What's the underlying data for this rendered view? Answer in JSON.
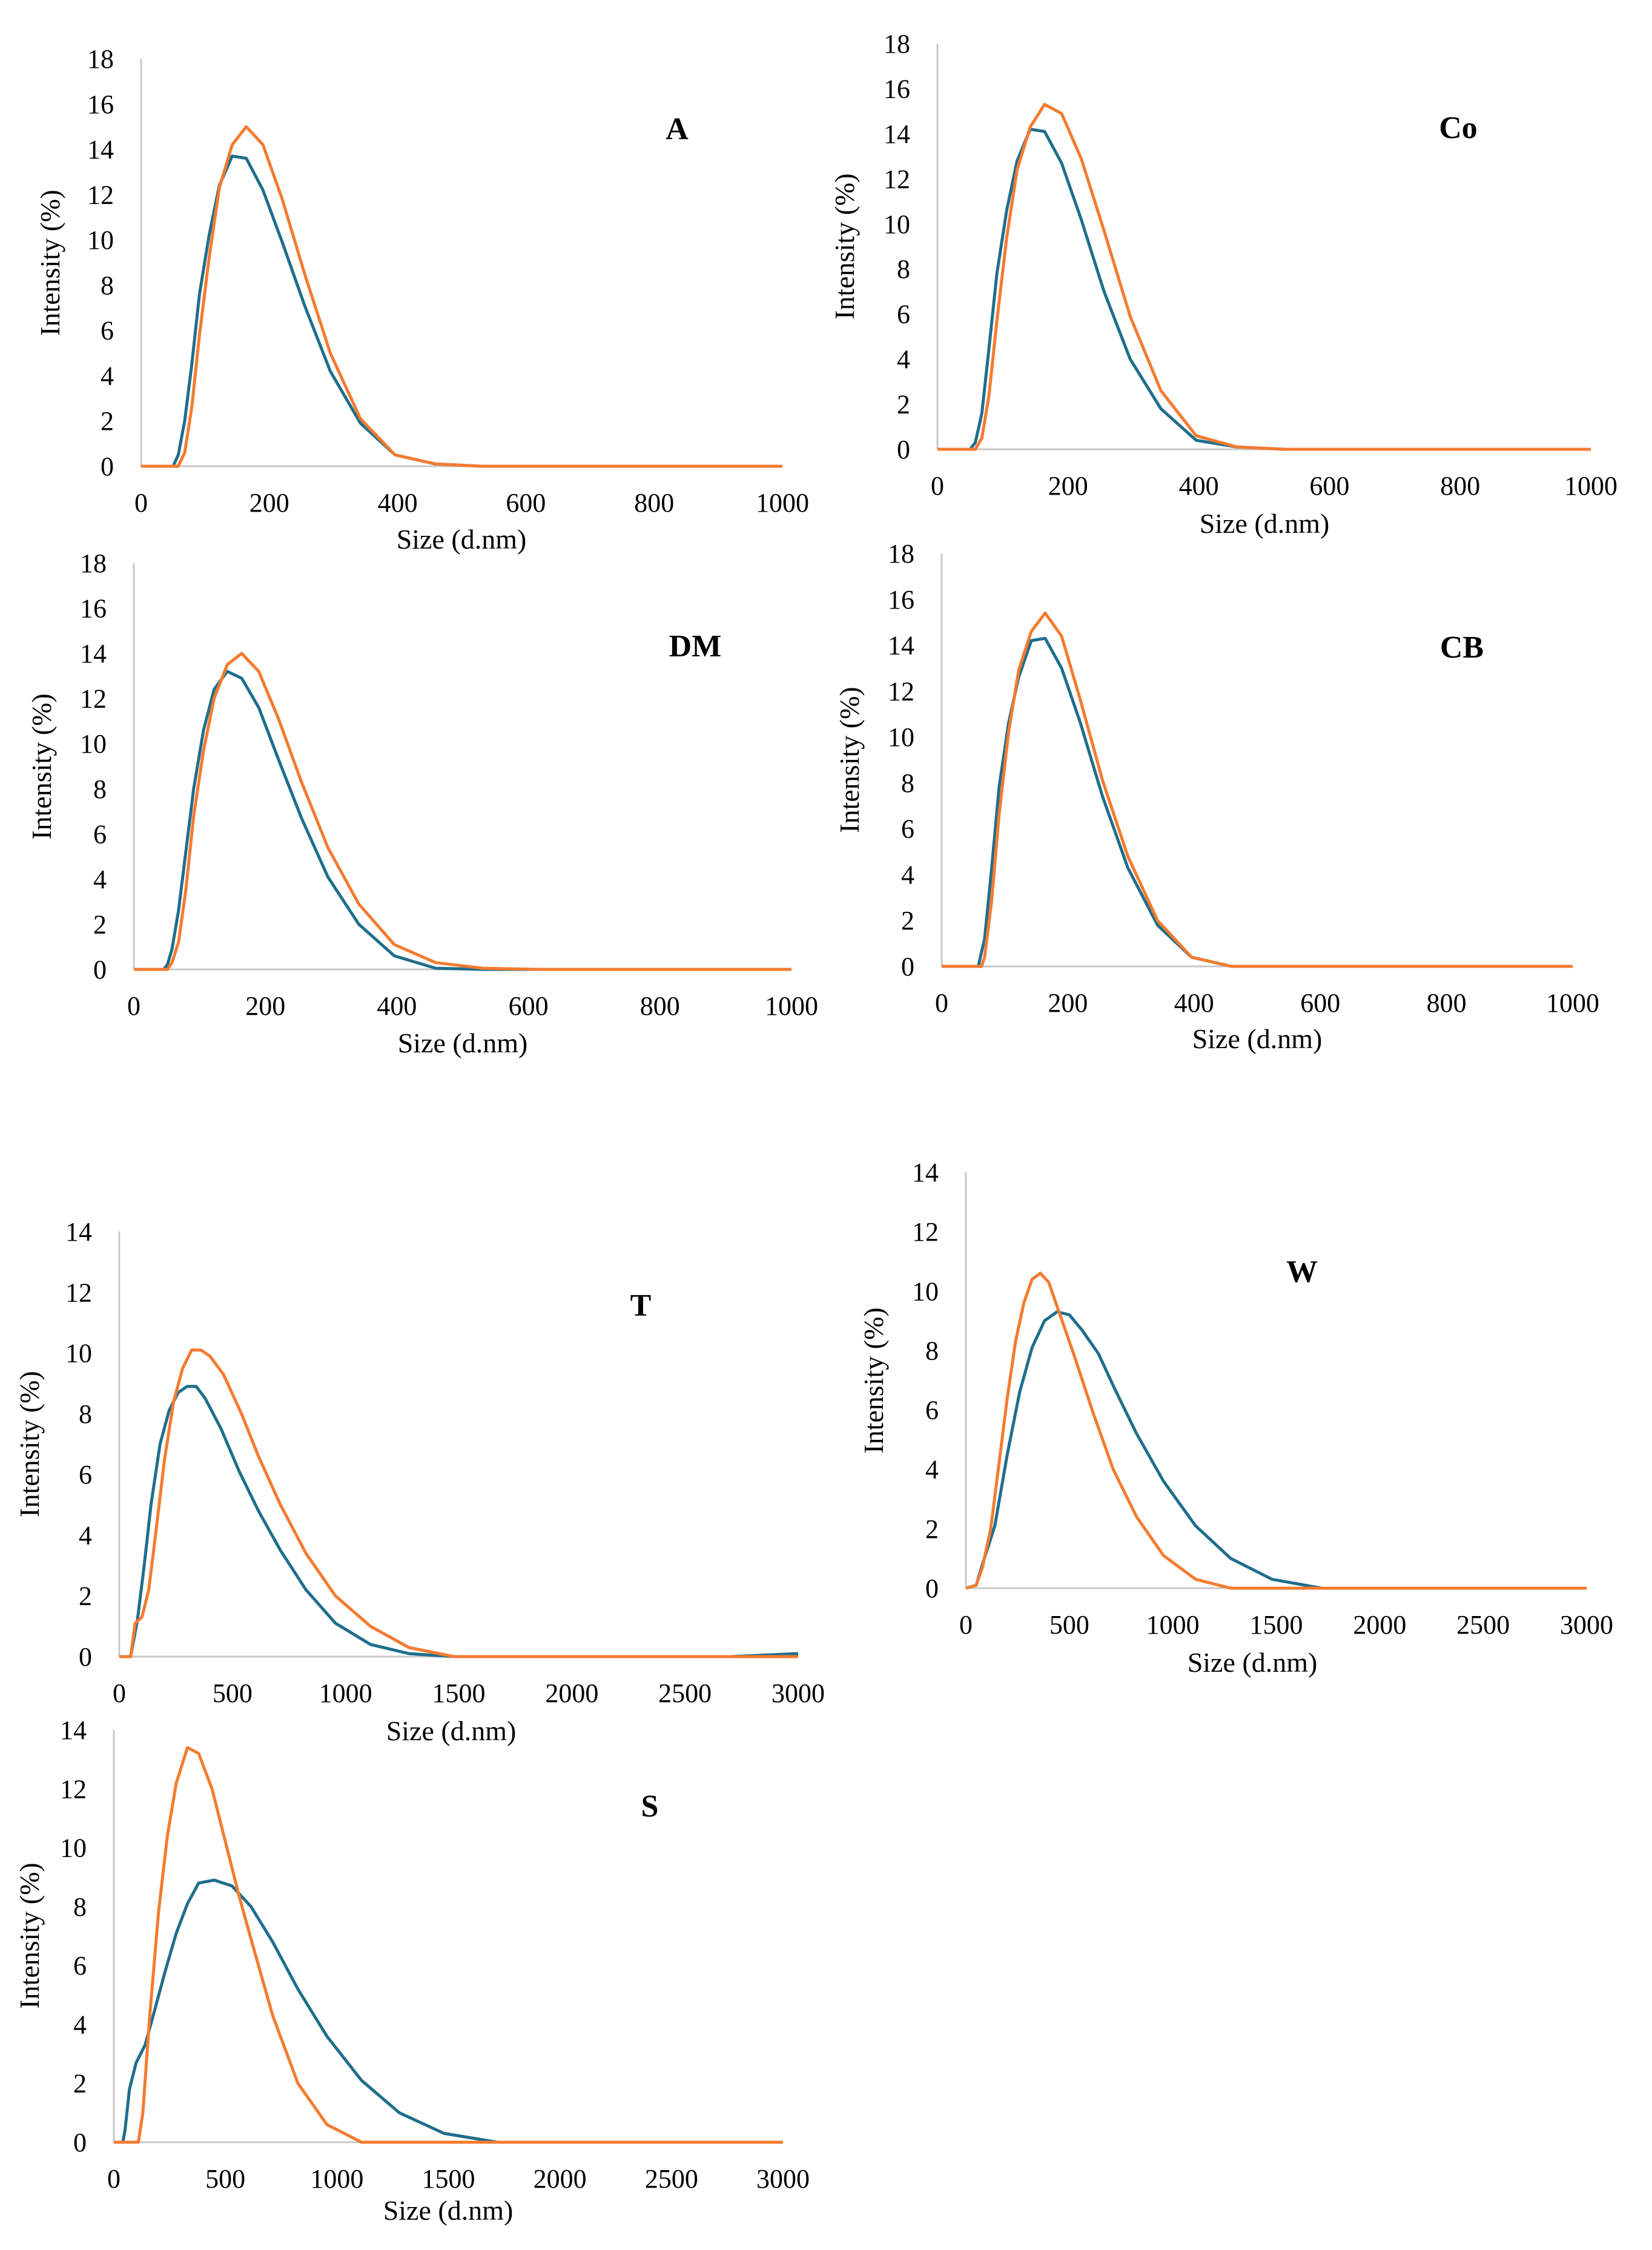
{
  "figure": {
    "colors": {
      "series1": "#1F6E8C",
      "series2": "#F47B30",
      "axis": "#c8c8c8"
    }
  },
  "chart_data": [
    {
      "type": "line",
      "panel": "A",
      "label": "A",
      "xlabel": "Size (d.nm)",
      "ylabel": "Intensity (%)",
      "xlim": [
        0,
        1000
      ],
      "ylim": [
        0,
        18
      ],
      "xticks": [
        0,
        200,
        400,
        600,
        800,
        1000
      ],
      "yticks": [
        0,
        2,
        4,
        6,
        8,
        10,
        12,
        14,
        16,
        18
      ],
      "series": [
        {
          "name": "series1",
          "color": "#1F6E8C",
          "x": [
            0,
            50,
            58,
            68,
            79,
            91,
            106,
            122,
            142,
            164,
            190,
            220,
            255,
            295,
            342,
            396,
            459,
            531,
            615,
            712,
            825,
            955,
            1000
          ],
          "y": [
            0,
            0,
            0.5,
            2,
            4.5,
            7.6,
            10.2,
            12.4,
            13.7,
            13.6,
            12.2,
            9.9,
            7.1,
            4.2,
            1.9,
            0.5,
            0.1,
            0,
            0,
            0,
            0,
            0,
            0
          ]
        },
        {
          "name": "series2",
          "color": "#F47B30",
          "x": [
            0,
            58,
            68,
            79,
            91,
            106,
            122,
            142,
            164,
            190,
            220,
            255,
            295,
            342,
            396,
            459,
            531,
            615,
            712,
            825,
            955,
            1000
          ],
          "y": [
            0,
            0,
            0.6,
            2.6,
            5.8,
            9.2,
            12.3,
            14.2,
            15,
            14.2,
            11.8,
            8.5,
            5,
            2.1,
            0.5,
            0.1,
            0,
            0,
            0,
            0,
            0,
            0
          ]
        }
      ]
    },
    {
      "type": "line",
      "panel": "Co",
      "label": "Co",
      "xlabel": "Size (d.nm)",
      "ylabel": "Intensity (%)",
      "xlim": [
        0,
        1000
      ],
      "ylim": [
        0,
        18
      ],
      "xticks": [
        0,
        200,
        400,
        600,
        800,
        1000
      ],
      "yticks": [
        0,
        2,
        4,
        6,
        8,
        10,
        12,
        14,
        16,
        18
      ],
      "series": [
        {
          "name": "series1",
          "color": "#1F6E8C",
          "x": [
            0,
            50,
            58,
            68,
            79,
            91,
            106,
            122,
            142,
            164,
            190,
            220,
            255,
            295,
            342,
            396,
            459,
            531,
            615,
            712,
            825,
            955,
            1000
          ],
          "y": [
            0,
            0,
            0.3,
            1.6,
            4.5,
            7.8,
            10.6,
            12.8,
            14.2,
            14.1,
            12.7,
            10.2,
            7,
            4,
            1.8,
            0.4,
            0.1,
            0,
            0,
            0,
            0,
            0,
            0
          ]
        },
        {
          "name": "series2",
          "color": "#F47B30",
          "x": [
            0,
            58,
            68,
            79,
            91,
            106,
            122,
            142,
            164,
            190,
            220,
            255,
            295,
            342,
            396,
            459,
            531,
            615,
            712,
            825,
            955,
            1000
          ],
          "y": [
            0,
            0,
            0.5,
            2.4,
            5.7,
            9.4,
            12.4,
            14.3,
            15.3,
            14.9,
            12.9,
            9.7,
            5.9,
            2.6,
            0.6,
            0.1,
            0,
            0,
            0,
            0,
            0,
            0
          ]
        }
      ]
    },
    {
      "type": "line",
      "panel": "DM",
      "label": "DM",
      "xlabel": "Size (d.nm)",
      "ylabel": "Intensity (%)",
      "xlim": [
        0,
        1000
      ],
      "ylim": [
        0,
        18
      ],
      "xticks": [
        0,
        200,
        400,
        600,
        800,
        1000
      ],
      "yticks": [
        0,
        2,
        4,
        6,
        8,
        10,
        12,
        14,
        16,
        18
      ],
      "series": [
        {
          "name": "series1",
          "color": "#1F6E8C",
          "x": [
            0,
            45,
            51,
            58,
            68,
            79,
            91,
            106,
            122,
            142,
            164,
            190,
            220,
            255,
            295,
            342,
            396,
            459,
            531,
            615,
            712,
            825,
            955,
            1000
          ],
          "y": [
            0,
            0,
            0.2,
            0.9,
            2.6,
            5.2,
            8,
            10.6,
            12.4,
            13.2,
            12.9,
            11.6,
            9.3,
            6.7,
            4.1,
            2,
            0.6,
            0.05,
            0,
            0,
            0,
            0,
            0,
            0
          ]
        },
        {
          "name": "series2",
          "color": "#F47B30",
          "x": [
            0,
            51,
            58,
            68,
            79,
            91,
            106,
            122,
            142,
            164,
            190,
            220,
            255,
            295,
            342,
            396,
            459,
            531,
            615,
            712,
            825,
            955,
            1000
          ],
          "y": [
            0,
            0,
            0.3,
            1.2,
            3.5,
            6.8,
            9.7,
            12,
            13.5,
            14,
            13.2,
            11.1,
            8.3,
            5.4,
            2.9,
            1.1,
            0.3,
            0.05,
            0,
            0,
            0,
            0,
            0
          ]
        }
      ]
    },
    {
      "type": "line",
      "panel": "CB",
      "label": "CB",
      "xlabel": "Size (d.nm)",
      "ylabel": "Intensity (%)",
      "xlim": [
        0,
        1000
      ],
      "ylim": [
        0,
        18
      ],
      "xticks": [
        0,
        200,
        400,
        600,
        800,
        1000
      ],
      "yticks": [
        0,
        2,
        4,
        6,
        8,
        10,
        12,
        14,
        16,
        18
      ],
      "series": [
        {
          "name": "series1",
          "color": "#1F6E8C",
          "x": [
            0,
            58,
            68,
            79,
            91,
            106,
            122,
            142,
            164,
            190,
            220,
            255,
            295,
            342,
            396,
            459,
            531,
            615,
            712,
            825,
            955,
            1000
          ],
          "y": [
            0,
            0,
            1.2,
            4.2,
            7.8,
            10.6,
            12.6,
            14.2,
            14.3,
            13,
            10.6,
            7.4,
            4.3,
            1.8,
            0.4,
            0,
            0,
            0,
            0,
            0,
            0,
            0
          ]
        },
        {
          "name": "series2",
          "color": "#F47B30",
          "x": [
            0,
            63,
            68,
            79,
            91,
            106,
            122,
            142,
            164,
            190,
            220,
            255,
            295,
            342,
            396,
            459,
            531,
            615,
            712,
            825,
            955,
            1000
          ],
          "y": [
            0,
            0,
            0.4,
            2.8,
            6.6,
            10.2,
            12.9,
            14.6,
            15.4,
            14.4,
            11.6,
            8.1,
            4.8,
            2,
            0.4,
            0,
            0,
            0,
            0,
            0,
            0,
            0
          ]
        }
      ]
    },
    {
      "type": "line",
      "panel": "T",
      "label": "T",
      "xlabel": "Size  (d.nm)",
      "ylabel": "Intensity (%)",
      "xlim": [
        0,
        3000
      ],
      "ylim": [
        0,
        14
      ],
      "xticks": [
        0,
        500,
        1000,
        1500,
        2000,
        2500,
        3000
      ],
      "yticks": [
        0,
        2,
        4,
        6,
        8,
        10,
        12,
        14
      ],
      "series": [
        {
          "name": "series1",
          "color": "#1F6E8C",
          "x": [
            0,
            50,
            80,
            110,
            140,
            180,
            220,
            260,
            300,
            340,
            380,
            450,
            530,
            615,
            712,
            825,
            955,
            1110,
            1280,
            1480,
            1720,
            2000,
            2700,
            3000
          ],
          "y": [
            0,
            0,
            1.2,
            3,
            5,
            7,
            8.1,
            8.7,
            8.9,
            8.9,
            8.5,
            7.5,
            6.1,
            4.8,
            3.5,
            2.2,
            1.1,
            0.4,
            0.1,
            0,
            0,
            0,
            0,
            0.1
          ]
        },
        {
          "name": "series2",
          "color": "#F47B30",
          "x": [
            0,
            50,
            70,
            100,
            130,
            160,
            200,
            240,
            280,
            320,
            360,
            400,
            460,
            540,
            615,
            712,
            825,
            955,
            1110,
            1280,
            1480,
            1720,
            2000,
            2700,
            3000
          ],
          "y": [
            0,
            0,
            1.1,
            1.3,
            2.2,
            4,
            6.5,
            8.4,
            9.5,
            10.1,
            10.1,
            9.9,
            9.3,
            8,
            6.6,
            5,
            3.4,
            2,
            1,
            0.3,
            0,
            0,
            0,
            0,
            0
          ]
        }
      ]
    },
    {
      "type": "line",
      "panel": "W",
      "label": "W",
      "xlabel": "Size  (d.nm)",
      "ylabel": "Intensity (%)",
      "xlim": [
        0,
        3000
      ],
      "ylim": [
        0,
        14
      ],
      "xticks": [
        0,
        500,
        1000,
        1500,
        2000,
        2500,
        3000
      ],
      "yticks": [
        0,
        2,
        4,
        6,
        8,
        10,
        12,
        14
      ],
      "series": [
        {
          "name": "series1",
          "color": "#1F6E8C",
          "x": [
            0,
            50,
            80,
            140,
            200,
            260,
            320,
            380,
            440,
            500,
            560,
            640,
            720,
            825,
            955,
            1110,
            1280,
            1480,
            1720,
            2000,
            2500,
            3000
          ],
          "y": [
            0,
            0.1,
            0.8,
            2.1,
            4.5,
            6.6,
            8.1,
            9,
            9.3,
            9.2,
            8.7,
            7.9,
            6.7,
            5.2,
            3.6,
            2.1,
            1,
            0.3,
            0,
            0,
            0,
            0
          ]
        },
        {
          "name": "series2",
          "color": "#F47B30",
          "x": [
            0,
            50,
            80,
            120,
            160,
            200,
            240,
            280,
            320,
            360,
            400,
            440,
            520,
            615,
            712,
            825,
            955,
            1110,
            1280,
            1480,
            2000,
            3000
          ],
          "y": [
            0,
            0.1,
            0.7,
            2,
            4.2,
            6.4,
            8.3,
            9.6,
            10.4,
            10.6,
            10.3,
            9.5,
            7.9,
            5.9,
            4,
            2.4,
            1.1,
            0.3,
            0,
            0,
            0,
            0
          ]
        }
      ]
    },
    {
      "type": "line",
      "panel": "S",
      "label": "S",
      "xlabel": "Size  (d.nm)",
      "ylabel": "Intensity (%)",
      "xlim": [
        0,
        3000
      ],
      "ylim": [
        0,
        14
      ],
      "xticks": [
        0,
        500,
        1000,
        1500,
        2000,
        2500,
        3000
      ],
      "yticks": [
        0,
        2,
        4,
        6,
        8,
        10,
        12,
        14
      ],
      "series": [
        {
          "name": "series1",
          "color": "#1F6E8C",
          "x": [
            0,
            40,
            50,
            70,
            100,
            140,
            180,
            230,
            280,
            330,
            380,
            450,
            530,
            615,
            712,
            825,
            955,
            1110,
            1280,
            1480,
            1720,
            2000,
            3000
          ],
          "y": [
            0,
            0,
            0.4,
            1.8,
            2.7,
            3.3,
            4.4,
            5.8,
            7.1,
            8.1,
            8.8,
            8.9,
            8.7,
            8,
            6.8,
            5.2,
            3.6,
            2.1,
            1,
            0.3,
            0,
            0,
            0
          ]
        },
        {
          "name": "series2",
          "color": "#F47B30",
          "x": [
            0,
            110,
            130,
            160,
            200,
            240,
            280,
            330,
            380,
            440,
            500,
            560,
            615,
            712,
            825,
            955,
            1110,
            1280,
            2000,
            3000
          ],
          "y": [
            0,
            0,
            1,
            4.2,
            7.8,
            10.4,
            12.2,
            13.4,
            13.2,
            12,
            10.2,
            8.4,
            6.9,
            4.3,
            2,
            0.6,
            0,
            0,
            0,
            0
          ]
        }
      ]
    }
  ]
}
